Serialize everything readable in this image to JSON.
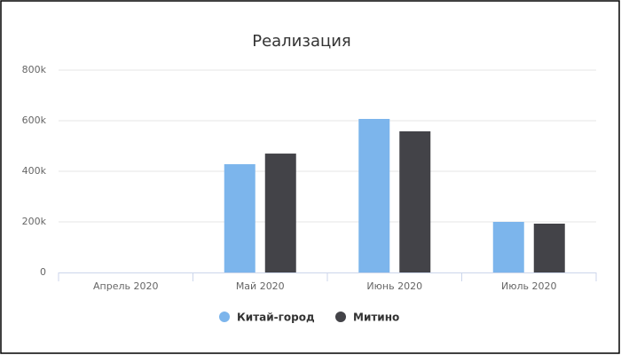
{
  "chart_data": {
    "type": "bar",
    "title": "Реализация",
    "categories": [
      "Апрель 2020",
      "Май 2020",
      "Июнь 2020",
      "Июль 2020"
    ],
    "series": [
      {
        "name": "Китай-город",
        "color": "#7cb5ec",
        "values": [
          0,
          428000,
          607000,
          200000
        ]
      },
      {
        "name": "Митино",
        "color": "#434348",
        "values": [
          0,
          470000,
          558000,
          193000
        ]
      }
    ],
    "ylim": [
      0,
      800000
    ],
    "yticks": [
      0,
      {
        "value": 200000,
        "label": "200k"
      },
      {
        "value": 400000,
        "label": "400k"
      },
      {
        "value": 600000,
        "label": "600k"
      },
      {
        "value": 800000,
        "label": "800k"
      }
    ],
    "grid": true,
    "legend": "bottom"
  }
}
